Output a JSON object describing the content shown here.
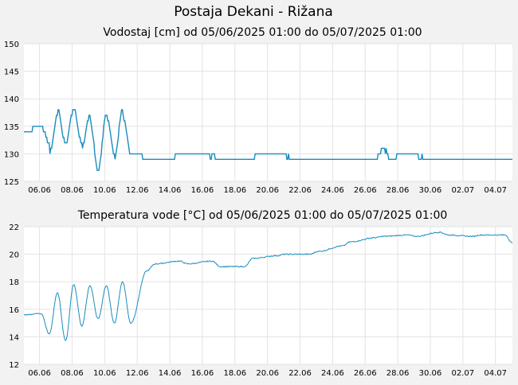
{
  "page": {
    "title": "Postaja Dekani - Rižana"
  },
  "chart_data": [
    {
      "type": "line",
      "title": "Vodostaj [cm] od 05/06/2025 01:00 do 05/07/2025 01:00",
      "xlabel": "",
      "ylabel": "",
      "xlim": [
        "2025-06-05",
        "2025-07-05"
      ],
      "ylim": [
        125,
        150
      ],
      "yticks": [
        125,
        130,
        135,
        140,
        145,
        150
      ],
      "xticks": [
        "06.06",
        "08.06",
        "10.06",
        "12.06",
        "14.06",
        "16.06",
        "18.06",
        "20.06",
        "22.06",
        "24.06",
        "26.06",
        "28.06",
        "30.06",
        "02.07",
        "04.07"
      ],
      "grid": true,
      "line_color": "#1a8cbd",
      "series": [
        {
          "x": [
            "2025-06-05",
            "2025-06-06",
            "2025-06-06",
            "2025-06-06",
            "2025-06-07",
            "2025-06-07",
            "2025-06-07",
            "2025-06-08",
            "2025-06-08",
            "2025-06-08",
            "2025-06-09",
            "2025-06-09",
            "2025-06-09",
            "2025-06-10",
            "2025-06-10",
            "2025-06-10",
            "2025-06-11",
            "2025-06-11",
            "2025-06-11",
            "2025-06-12",
            "2025-06-12",
            "2025-06-13",
            "2025-06-15",
            "2025-06-18",
            "2025-06-20",
            "2025-06-22",
            "2025-06-24",
            "2025-06-26",
            "2025-06-27",
            "2025-06-27",
            "2025-06-28",
            "2025-06-30",
            "2025-07-02",
            "2025-07-05"
          ],
          "values": [
            134,
            132,
            135,
            130,
            137,
            132,
            138,
            132,
            138,
            131,
            137,
            127,
            136,
            130,
            137,
            129,
            138,
            130,
            137,
            129,
            130,
            129,
            130,
            129,
            130,
            129,
            129,
            129,
            131,
            129,
            130,
            129,
            129,
            129
          ]
        }
      ]
    },
    {
      "type": "line",
      "title": "Temperatura vode [°C] od 05/06/2025 01:00 do 05/07/2025 01:00",
      "xlabel": "",
      "ylabel": "",
      "xlim": [
        "2025-06-05",
        "2025-07-05"
      ],
      "ylim": [
        12,
        22
      ],
      "yticks": [
        12,
        14,
        16,
        18,
        20,
        22
      ],
      "xticks": [
        "06.06",
        "08.06",
        "10.06",
        "12.06",
        "14.06",
        "16.06",
        "18.06",
        "20.06",
        "22.06",
        "24.06",
        "26.06",
        "28.06",
        "30.06",
        "02.07",
        "04.07"
      ],
      "grid": true,
      "line_color": "#1a8cbd",
      "series": [
        {
          "x": [
            "2025-06-05",
            "2025-06-06",
            "2025-06-06",
            "2025-06-07",
            "2025-06-07",
            "2025-06-08",
            "2025-06-08",
            "2025-06-09",
            "2025-06-09",
            "2025-06-10",
            "2025-06-10",
            "2025-06-11",
            "2025-06-11",
            "2025-06-12",
            "2025-06-13",
            "2025-06-14",
            "2025-06-15",
            "2025-06-16",
            "2025-06-17",
            "2025-06-18",
            "2025-06-19",
            "2025-06-20",
            "2025-06-21",
            "2025-06-22",
            "2025-06-23",
            "2025-06-24",
            "2025-06-25",
            "2025-06-26",
            "2025-06-27",
            "2025-06-28",
            "2025-06-29",
            "2025-06-30",
            "2025-07-01",
            "2025-07-02",
            "2025-07-03",
            "2025-07-04",
            "2025-07-05"
          ],
          "values": [
            15.6,
            14.2,
            15.7,
            13.7,
            17.2,
            14.8,
            17.8,
            15.3,
            17.7,
            15.0,
            17.7,
            15.0,
            18.0,
            18.8,
            19.3,
            19.5,
            19.3,
            19.5,
            19.1,
            19.1,
            19.7,
            19.9,
            20.0,
            20.0,
            20.2,
            20.6,
            20.9,
            21.2,
            21.3,
            21.4,
            21.3,
            21.6,
            21.4,
            21.3,
            21.4,
            21.4,
            20.8
          ]
        }
      ]
    }
  ]
}
